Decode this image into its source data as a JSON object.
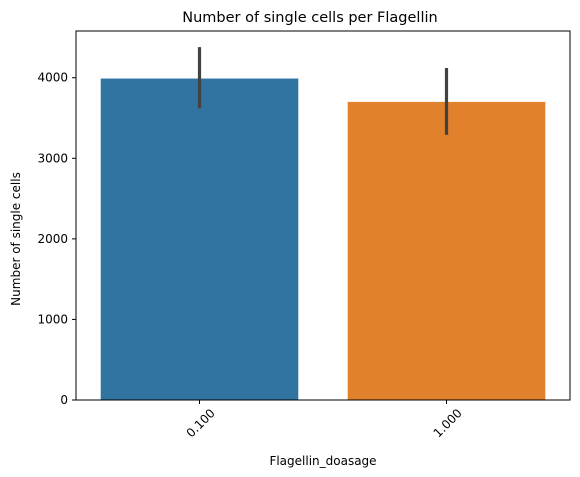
{
  "chart_data": {
    "type": "bar",
    "title": "Number of single cells per Flagellin",
    "xlabel": "Flagellin_doasage",
    "ylabel": "Number of single cells",
    "categories": [
      "0.100",
      "1.000"
    ],
    "values": [
      3990,
      3700
    ],
    "error_bars": [
      {
        "low": 3620,
        "high": 4380
      },
      {
        "low": 3290,
        "high": 4120
      }
    ],
    "colors": [
      "#3274a1",
      "#e1812c"
    ],
    "error_bar_color": "#424242",
    "ylim": [
      0,
      4580
    ],
    "yticks": [
      0,
      1000,
      2000,
      3000,
      4000
    ],
    "xtick_rotation_deg": 45,
    "grid": false,
    "legend": "none"
  }
}
